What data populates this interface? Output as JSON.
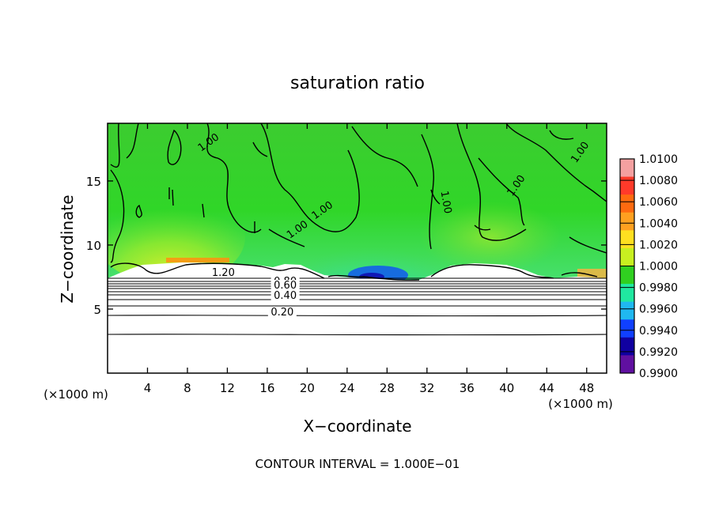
{
  "chart_data": {
    "type": "heatmap",
    "title": "saturation ratio",
    "xlabel": "X−coordinate",
    "ylabel": "Z−coordinate",
    "x_unit_label": "(×1000 m)",
    "y_unit_label": "(×1000 m)",
    "footer": "CONTOUR INTERVAL =  1.000E−01",
    "xlim": [
      0,
      50
    ],
    "ylim": [
      0,
      19.5
    ],
    "x_ticks": [
      4,
      8,
      12,
      16,
      20,
      24,
      28,
      32,
      36,
      40,
      44,
      48
    ],
    "y_ticks": [
      5,
      10,
      15
    ],
    "colorbar": {
      "labels": [
        "1.0100",
        "1.0080",
        "1.0060",
        "1.0040",
        "1.0020",
        "1.0000",
        "0.9980",
        "0.9960",
        "0.9940",
        "0.9920",
        "0.9900"
      ],
      "colors": [
        "#f4a0a0",
        "#ff3a2a",
        "#ff6a10",
        "#ffa020",
        "#ffe020",
        "#c8f020",
        "#30d020",
        "#20e8a0",
        "#20b8f0",
        "#1040ff",
        "#1000a0",
        "#6010a0"
      ]
    },
    "contour_labels": [
      {
        "text": "1.00",
        "x": 21.7,
        "y": 12.5
      },
      {
        "text": "1.00",
        "x": 19.2,
        "y": 11.0
      },
      {
        "text": "1.00",
        "x": 33.6,
        "y": 13.3
      },
      {
        "text": "1.00",
        "x": 41.2,
        "y": 14.5
      },
      {
        "text": "1.00",
        "x": 47.6,
        "y": 17.1
      },
      {
        "text": "1.00",
        "x": 10.3,
        "y": 17.8
      },
      {
        "text": "1.20",
        "x": 11.6,
        "y": 7.6
      },
      {
        "text": "0.80",
        "x": 17.8,
        "y": 6.9
      },
      {
        "text": "0.60",
        "x": 17.8,
        "y": 6.6
      },
      {
        "text": "0.40",
        "x": 17.8,
        "y": 5.8
      },
      {
        "text": "0.20",
        "x": 17.5,
        "y": 4.5
      }
    ]
  }
}
